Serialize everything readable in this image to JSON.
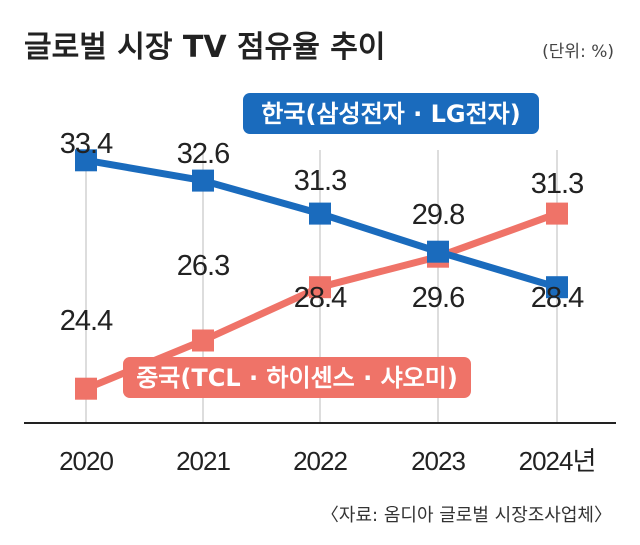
{
  "chart_data": {
    "type": "line",
    "title": "글로벌 시장 TV 점유율 추이",
    "unit": "(단위: %)",
    "categories": [
      "2020",
      "2021",
      "2022",
      "2023",
      "2024년"
    ],
    "series": [
      {
        "name": "한국(삼성전자 · LG전자)",
        "values": [
          33.4,
          32.6,
          31.3,
          29.8,
          28.4
        ],
        "labels": [
          "33.4",
          "32.6",
          "31.3",
          "29.8",
          "28.4"
        ],
        "color": "#1a6bbd"
      },
      {
        "name": "중국(TCL · 하이센스 · 샤오미)",
        "values": [
          24.4,
          26.3,
          28.4,
          29.6,
          31.3
        ],
        "labels": [
          "24.4",
          "26.3",
          "28.4",
          "29.6",
          "31.3"
        ],
        "color": "#ef7368"
      }
    ],
    "ylim": [
      23.6,
      34.2
    ],
    "grid": false,
    "source": "〈자료: 옴디아 글로벌 시장조사업체〉"
  },
  "colors": {
    "korea": "#1a6bbd",
    "china": "#ef7368",
    "axis": "#222222"
  }
}
